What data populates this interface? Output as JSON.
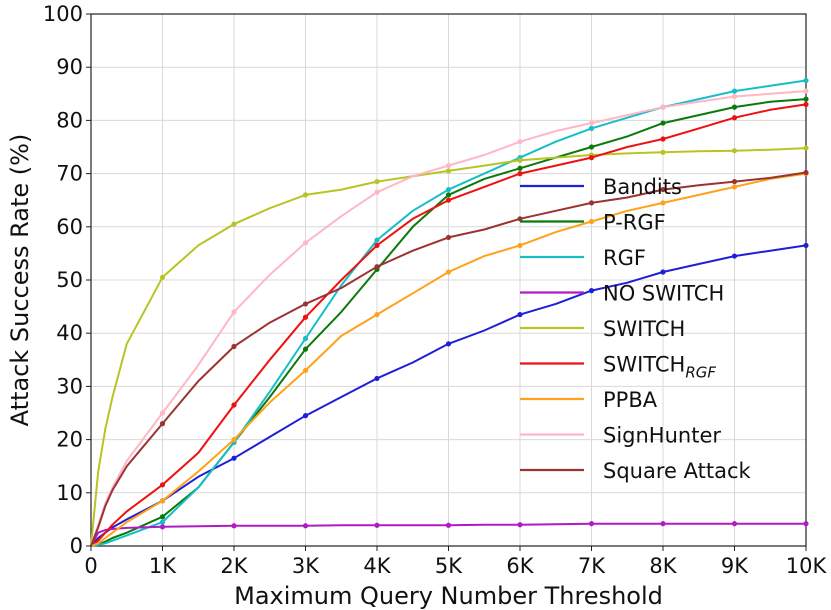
{
  "chart_data": {
    "type": "line",
    "title": "",
    "xlabel": "Maximum Query Number Threshold",
    "ylabel": "Attack Success Rate (%)",
    "xlim": [
      0,
      10000
    ],
    "ylim": [
      0,
      100
    ],
    "x_ticks": [
      0,
      1000,
      2000,
      3000,
      4000,
      5000,
      6000,
      7000,
      8000,
      9000,
      10000
    ],
    "x_tick_labels": [
      "0",
      "1K",
      "2K",
      "3K",
      "4K",
      "5K",
      "6K",
      "7K",
      "8K",
      "9K",
      "10K"
    ],
    "y_ticks": [
      0,
      10,
      20,
      30,
      40,
      50,
      60,
      70,
      80,
      90,
      100
    ],
    "y_tick_labels": [
      "0",
      "10",
      "20",
      "30",
      "40",
      "50",
      "60",
      "70",
      "80",
      "90",
      "100"
    ],
    "grid": true,
    "legend_position": "right",
    "x": [
      0,
      100,
      200,
      300,
      500,
      1000,
      1500,
      2000,
      2500,
      3000,
      3500,
      4000,
      4500,
      5000,
      5500,
      6000,
      6500,
      7000,
      7500,
      8000,
      8500,
      9000,
      9500,
      10000
    ],
    "series": [
      {
        "name": "Bandits",
        "color": "#1f1fd6",
        "values": [
          0,
          1.5,
          2.5,
          3.5,
          5,
          8.5,
          13,
          16.5,
          20.5,
          24.5,
          28,
          31.5,
          34.5,
          38,
          40.5,
          43.5,
          45.5,
          48,
          49.5,
          51.5,
          53,
          54.5,
          55.5,
          56.5
        ]
      },
      {
        "name": "P-RGF",
        "color": "#0a7a0a",
        "values": [
          0,
          0.3,
          0.8,
          1.5,
          2.5,
          5.5,
          11,
          19.5,
          28,
          37,
          44,
          52,
          60,
          66,
          69,
          71,
          73,
          75,
          77,
          79.5,
          81,
          82.5,
          83.5,
          84
        ]
      },
      {
        "name": "RGF",
        "color": "#17bec8",
        "values": [
          0,
          0.2,
          0.5,
          1,
          2,
          4.5,
          11,
          19.5,
          29,
          39,
          49,
          57.5,
          63,
          67,
          70,
          73,
          76,
          78.5,
          80.5,
          82.5,
          84,
          85.5,
          86.5,
          87.5
        ]
      },
      {
        "name": "NO SWITCH",
        "color": "#b01cc4",
        "values": [
          0,
          2.5,
          3,
          3.2,
          3.4,
          3.6,
          3.7,
          3.8,
          3.8,
          3.8,
          3.9,
          3.9,
          3.9,
          3.9,
          4,
          4,
          4.1,
          4.2,
          4.2,
          4.2,
          4.2,
          4.2,
          4.2,
          4.2
        ]
      },
      {
        "name": "SWITCH",
        "color": "#b8c424",
        "values": [
          0,
          14,
          22,
          28,
          38,
          50.5,
          56.5,
          60.5,
          63.5,
          66,
          67,
          68.5,
          69.5,
          70.5,
          71.5,
          72.5,
          73,
          73.5,
          73.8,
          74,
          74.2,
          74.3,
          74.5,
          74.8
        ]
      },
      {
        "name": "SWITCH",
        "name_subscript": "RGF",
        "color": "#ee1111",
        "values": [
          0,
          1,
          2.5,
          4,
          6.5,
          11.5,
          17.5,
          26.5,
          35,
          43,
          50,
          56.5,
          61.5,
          65,
          67.5,
          70,
          71.5,
          73,
          75,
          76.5,
          78.5,
          80.5,
          82,
          83
        ]
      },
      {
        "name": "PPBA",
        "color": "#ffa21a",
        "values": [
          0,
          0.5,
          1.5,
          2.5,
          4.5,
          8.5,
          14,
          20,
          27,
          33,
          39.5,
          43.5,
          47.5,
          51.5,
          54.5,
          56.5,
          59,
          61,
          63,
          64.5,
          66,
          67.5,
          69,
          70
        ]
      },
      {
        "name": "SignHunter",
        "color": "#ffb6c6",
        "values": [
          0,
          4,
          8,
          11,
          16,
          25,
          34,
          44,
          51,
          57,
          62,
          66.5,
          69.5,
          71.5,
          73.5,
          76,
          78,
          79.5,
          81,
          82.5,
          83.5,
          84.5,
          85,
          85.5
        ]
      },
      {
        "name": "Square Attack",
        "color": "#9a3434",
        "values": [
          0,
          3.5,
          7.5,
          10.5,
          15,
          23,
          31,
          37.5,
          42,
          45.5,
          48.5,
          52.5,
          55.5,
          58,
          59.5,
          61.5,
          63,
          64.5,
          65.5,
          67,
          67.8,
          68.5,
          69.2,
          70.2
        ]
      }
    ]
  }
}
